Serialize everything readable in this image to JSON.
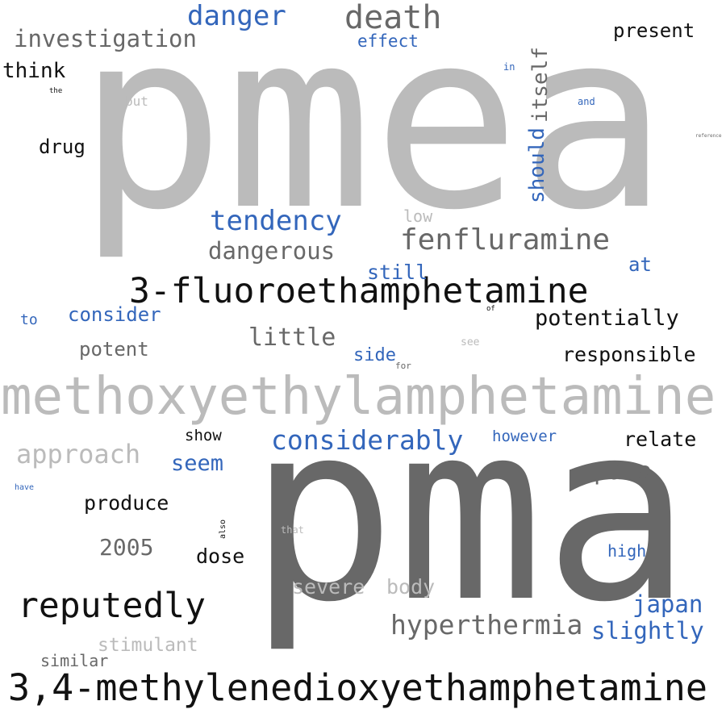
{
  "palette": {
    "light_gray": "#bbbbbb",
    "dark_gray": "#686868",
    "blue": "#3366bb",
    "black": "#111111",
    "background": "#ffffff"
  },
  "words": {
    "pmea": "pmea",
    "pma": "pma",
    "methoxyethylamphetamine": "methoxyethylamphetamine",
    "mdea": "3,4-methylenedioxyethamphetamine",
    "fluoro": "3-fluoroethamphetamine",
    "reputedly": "reputedly",
    "death": "death",
    "danger": "danger",
    "investigation": "investigation",
    "effect": "effect",
    "present": "present",
    "think": "think",
    "the": "the",
    "but": "but",
    "in": "in",
    "and": "and",
    "itself": "itself",
    "should": "should",
    "reference": "reference",
    "drug": "drug",
    "tendency": "tendency",
    "low": "low",
    "fenfluramine": "fenfluramine",
    "dangerous": "dangerous",
    "still": "still",
    "at": "at",
    "to": "to",
    "consider": "consider",
    "of": "of",
    "potentially": "potentially",
    "little": "little",
    "potent": "potent",
    "side": "side",
    "see": "see",
    "for": "for",
    "responsible": "responsible",
    "approach": "approach",
    "show": "show",
    "considerably": "considerably",
    "however": "however",
    "relate": "relate",
    "seem": "seem",
    "para": "para",
    "have": "have",
    "produce": "produce",
    "also": "also",
    "that": "that",
    "2005": "2005",
    "dose": "dose",
    "high": "high",
    "severe": "severe",
    "body": "body",
    "japan": "japan",
    "hyperthermia": "hyperthermia",
    "slightly": "slightly",
    "stimulant": "stimulant",
    "similar": "similar"
  }
}
